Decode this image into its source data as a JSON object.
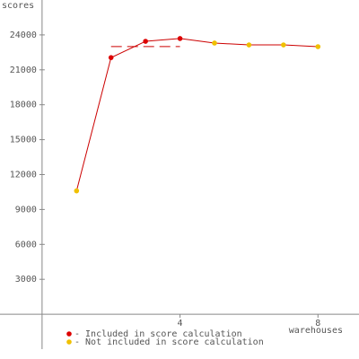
{
  "chart_data": {
    "type": "line",
    "y_label": "scores",
    "x_label": "warehouses",
    "x": [
      1,
      2,
      3,
      4,
      5,
      6,
      7,
      8
    ],
    "line_color": "#cc0000",
    "series": [
      {
        "name": "- Included in score calculation",
        "color": "#dd0000",
        "values": [
          null,
          22050,
          23450,
          23690,
          null,
          null,
          null,
          null
        ]
      },
      {
        "name": "- Not included in score calculation",
        "color": "#f0c000",
        "values": [
          10600,
          null,
          null,
          null,
          23300,
          23140,
          23140,
          22990
        ]
      }
    ],
    "reference_line": {
      "value": 23000,
      "x": [
        2,
        4
      ],
      "color": "#cc0000"
    },
    "xlim": [
      -1.22,
      9.19
    ],
    "ylim": [
      -3000,
      27000
    ],
    "xticks": [
      4,
      8
    ],
    "yticks": [
      3000,
      6000,
      9000,
      12000,
      15000,
      18000,
      21000,
      24000
    ]
  }
}
